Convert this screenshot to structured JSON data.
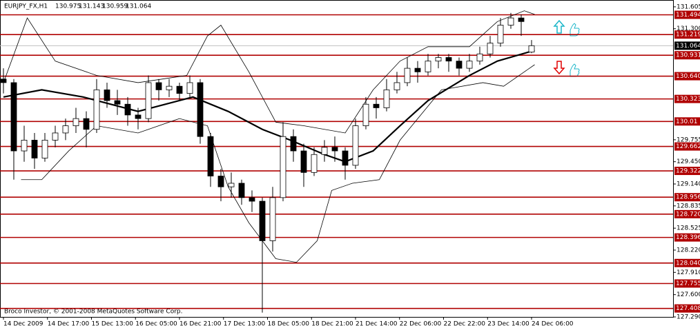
{
  "chart_data": {
    "type": "candlestick",
    "symbol": "EURJPY_FX,H1",
    "footer": "Broco Investor, © 2001-2008 MetaQuotes Software Corp.",
    "categories": [
      "14 Dec 2009",
      "14 Dec 17:00",
      "15 Dec 13:00",
      "16 Dec 05:00",
      "16 Dec 21:00",
      "17 Dec 13:00",
      "18 Dec 05:00",
      "18 Dec 21:00",
      "21 Dec 14:00",
      "22 Dec 06:00",
      "22 Dec 22:00",
      "23 Dec 14:00",
      "24 Dec 06:00"
    ],
    "open": [
      130.6,
      130.55,
      129.6,
      129.75,
      129.5,
      129.75,
      129.85,
      129.95,
      130.05,
      129.9,
      130.45,
      130.3,
      130.25,
      130.1,
      130.05,
      130.55,
      130.45,
      130.5,
      130.4,
      130.55,
      129.8,
      129.25,
      129.1,
      129.15,
      128.95,
      128.9,
      128.35,
      128.95,
      129.8,
      129.6,
      129.3,
      129.55,
      129.65,
      129.6,
      129.4,
      129.95,
      130.25,
      130.2,
      130.45,
      130.55,
      130.75,
      130.7,
      130.85,
      130.9,
      130.85,
      130.75,
      130.85,
      130.95,
      131.1,
      131.35,
      131.45,
      130.975
    ],
    "high": [
      130.75,
      130.6,
      129.95,
      129.85,
      129.85,
      129.95,
      130.05,
      130.2,
      130.15,
      130.6,
      130.55,
      130.45,
      130.35,
      130.2,
      130.65,
      130.6,
      130.6,
      130.55,
      130.65,
      130.6,
      129.85,
      129.35,
      129.3,
      129.2,
      129.05,
      128.95,
      129.1,
      130.0,
      129.9,
      129.7,
      129.65,
      129.75,
      129.8,
      129.65,
      130.05,
      130.35,
      130.35,
      130.6,
      130.7,
      130.9,
      130.85,
      130.95,
      130.95,
      130.95,
      130.9,
      130.95,
      131.05,
      131.2,
      131.45,
      131.52,
      131.5,
      131.143
    ],
    "low": [
      130.4,
      129.2,
      129.45,
      129.35,
      129.45,
      129.65,
      129.75,
      129.85,
      129.65,
      129.85,
      130.2,
      130.1,
      129.95,
      129.9,
      130.0,
      130.3,
      130.35,
      130.3,
      130.35,
      129.7,
      129.1,
      128.9,
      128.95,
      128.85,
      128.75,
      127.35,
      128.2,
      128.9,
      129.45,
      129.1,
      129.25,
      129.45,
      129.45,
      129.2,
      129.35,
      129.9,
      130.05,
      130.15,
      130.4,
      130.5,
      130.55,
      130.65,
      130.75,
      130.7,
      130.65,
      130.7,
      130.8,
      130.9,
      131.05,
      131.3,
      131.2,
      130.959
    ],
    "close": [
      130.55,
      129.6,
      129.75,
      129.5,
      129.75,
      129.85,
      129.95,
      130.05,
      129.9,
      130.45,
      130.3,
      130.25,
      130.1,
      130.05,
      130.55,
      130.45,
      130.5,
      130.4,
      130.55,
      129.8,
      129.25,
      129.1,
      129.15,
      128.95,
      128.9,
      128.35,
      128.95,
      129.8,
      129.6,
      129.3,
      129.55,
      129.65,
      129.6,
      129.4,
      129.95,
      130.25,
      130.2,
      130.45,
      130.55,
      130.75,
      130.7,
      130.85,
      130.9,
      130.85,
      130.75,
      130.85,
      130.95,
      131.1,
      131.35,
      131.45,
      131.4,
      131.064
    ],
    "series": [
      {
        "color": "#000000",
        "width": 2.2,
        "x": [
          0,
          3.7,
          7.7,
          13,
          18.3,
          21.7,
          25,
          27.7,
          31,
          33,
          35.7,
          38.3,
          41,
          45,
          47.7,
          51.3
        ],
        "values": [
          130.35,
          130.45,
          130.35,
          130.15,
          130.35,
          130.15,
          129.9,
          129.75,
          129.55,
          129.45,
          129.6,
          129.95,
          130.3,
          130.65,
          130.85,
          131.0
        ]
      },
      {
        "color": "#000000",
        "width": 0.8,
        "x": [
          0,
          2.3,
          5,
          9,
          13,
          17.7,
          19.7,
          21,
          23.7,
          26.3,
          29,
          33,
          35.7,
          38.3,
          41,
          45,
          47.7,
          50.3,
          51.3
        ],
        "values": [
          130.55,
          131.45,
          130.85,
          130.65,
          130.55,
          130.65,
          131.2,
          131.35,
          130.7,
          130.0,
          129.95,
          129.85,
          130.45,
          130.85,
          131.05,
          131.05,
          131.4,
          131.55,
          131.5
        ]
      },
      {
        "color": "#000000",
        "width": 0.8,
        "x": [
          1.7,
          3.7,
          6.3,
          9,
          13,
          17,
          19.7,
          21.7,
          23.7,
          26.3,
          28.3,
          30.3,
          31.7,
          33.7,
          36.3,
          38.3,
          42.3,
          46.3,
          48.3,
          50.3,
          51.3
        ],
        "values": [
          129.2,
          129.2,
          129.6,
          129.95,
          129.85,
          130.05,
          129.95,
          129.1,
          128.6,
          128.1,
          128.05,
          128.35,
          129.05,
          129.15,
          129.2,
          129.75,
          130.45,
          130.55,
          130.5,
          130.7,
          130.8
        ]
      }
    ],
    "levels": [
      131.494,
      131.219,
      130.931,
      {
        "value": 130.64,
        "label": "130.640"
      },
      130.323,
      130.01,
      129.662,
      129.322,
      128.956,
      {
        "value": 128.72,
        "label": "128.720"
      },
      128.396,
      {
        "value": 128.04,
        "label": "128.040"
      },
      127.755,
      127.408
    ],
    "level_color": "#b00000",
    "ylim": [
      127.29,
      131.7
    ],
    "yticks": [
      131.605,
      {
        "value": 131.3,
        "label": "131.300"
      },
      129.755,
      {
        "value": 129.45,
        "label": "129.450"
      },
      {
        "value": 129.14,
        "label": "129.140"
      },
      128.835,
      128.525,
      {
        "value": 128.22,
        "label": "128.220"
      },
      {
        "value": 127.91,
        "label": "127.910"
      },
      {
        "value": 127.6,
        "label": "127.600"
      },
      {
        "value": 127.29,
        "label": "127.290"
      }
    ]
  }
}
